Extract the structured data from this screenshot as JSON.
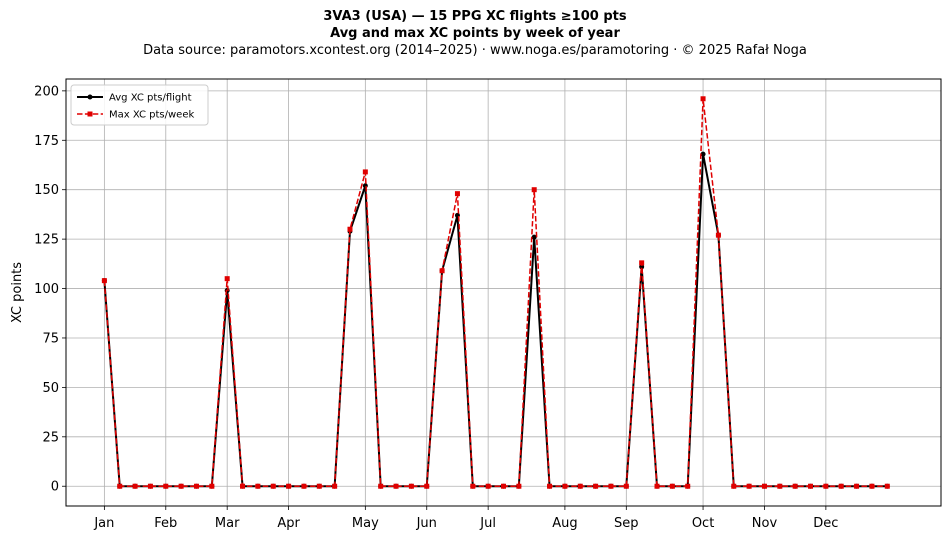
{
  "chart_data": {
    "type": "line",
    "title_lines": [
      "3VA3 (USA)  —  15 PPG XC flights ≥100 pts",
      "Avg and max XC points by week of year"
    ],
    "subtitle": "Data source: paramotors.xcontest.org (2014–2025)  ·  www.noga.es/paramotoring  ·  © 2025 Rafał Noga",
    "xlabel": "",
    "ylabel": "XC points",
    "x_unit": "week of year",
    "xlim": [
      -2.5,
      54.5
    ],
    "ylim": [
      -10,
      206
    ],
    "x_ticks": [
      {
        "label": "Jan",
        "week": 0
      },
      {
        "label": "Feb",
        "week": 4
      },
      {
        "label": "Mar",
        "week": 8
      },
      {
        "label": "Apr",
        "week": 12
      },
      {
        "label": "May",
        "week": 17
      },
      {
        "label": "Jun",
        "week": 21
      },
      {
        "label": "Jul",
        "week": 25
      },
      {
        "label": "Aug",
        "week": 30
      },
      {
        "label": "Sep",
        "week": 34
      },
      {
        "label": "Oct",
        "week": 39
      },
      {
        "label": "Nov",
        "week": 43
      },
      {
        "label": "Dec",
        "week": 47
      }
    ],
    "y_ticks": [
      0,
      25,
      50,
      75,
      100,
      125,
      150,
      175,
      200
    ],
    "grid": true,
    "legend_position": "top-left",
    "x": [
      0,
      1,
      2,
      3,
      4,
      5,
      6,
      7,
      8,
      9,
      10,
      11,
      12,
      13,
      14,
      15,
      16,
      17,
      18,
      19,
      20,
      21,
      22,
      23,
      24,
      25,
      26,
      27,
      28,
      29,
      30,
      31,
      32,
      33,
      34,
      35,
      36,
      37,
      38,
      39,
      40,
      41,
      42,
      43,
      44,
      45,
      46,
      47,
      48,
      49,
      50,
      51
    ],
    "series": [
      {
        "name": "Avg XC pts/flight",
        "color": "#000000",
        "style": "solid",
        "marker": "circle",
        "values": [
          104,
          0,
          0,
          0,
          0,
          0,
          0,
          0,
          99,
          0,
          0,
          0,
          0,
          0,
          0,
          0,
          129,
          152,
          0,
          0,
          0,
          0,
          109,
          137,
          0,
          0,
          0,
          0,
          126,
          0,
          0,
          0,
          0,
          0,
          0,
          111,
          0,
          0,
          0,
          168,
          127,
          0,
          0,
          0,
          0,
          0,
          0,
          0,
          0,
          0,
          0,
          0
        ]
      },
      {
        "name": "Max XC pts/week",
        "color": "#e00000",
        "style": "dashed",
        "marker": "square",
        "values": [
          104,
          0,
          0,
          0,
          0,
          0,
          0,
          0,
          105,
          0,
          0,
          0,
          0,
          0,
          0,
          0,
          130,
          159,
          0,
          0,
          0,
          0,
          109,
          148,
          0,
          0,
          0,
          0,
          150,
          0,
          0,
          0,
          0,
          0,
          0,
          113,
          0,
          0,
          0,
          196,
          127,
          0,
          0,
          0,
          0,
          0,
          0,
          0,
          0,
          0,
          0,
          0
        ]
      }
    ]
  }
}
